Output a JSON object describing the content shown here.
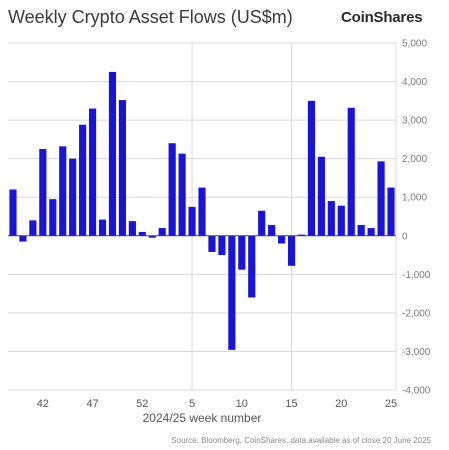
{
  "header": {
    "title": "Weekly Crypto Asset Flows (US$m)",
    "brand": "CoinShares"
  },
  "footer": {
    "source": "Source: Bloomberg, CoinShares, data available as of close 20 June 2025"
  },
  "colors": {
    "bar": "#1a14d6",
    "grid": "#d8d8d8",
    "zero_line": "#444444",
    "axis_text": "#7a7a7a"
  },
  "chart_data": {
    "type": "bar",
    "title": "Weekly Crypto Asset Flows (US$m)",
    "xlabel": "2024/25 week number",
    "ylabel": "",
    "ylim": [
      -4000,
      5000
    ],
    "yticks": [
      5000,
      4000,
      3000,
      2000,
      1000,
      0,
      -1000,
      -2000,
      -3000,
      -4000
    ],
    "ytick_labels": [
      "5,000",
      "4,000",
      "3,000",
      "2,000",
      "1,000",
      "0",
      "-1,000",
      "-2,000",
      "-3,000",
      "-4,000"
    ],
    "xtick_labels": [
      "42",
      "47",
      "52",
      "5",
      "10",
      "15",
      "20",
      "25"
    ],
    "xtick_positions": [
      3,
      8,
      13,
      18,
      23,
      28,
      33,
      38
    ],
    "vertical_gridlines_at": [
      18,
      28
    ],
    "grid": true,
    "y_axis_side": "right",
    "series": [
      {
        "values": [
          1200,
          -150,
          400,
          2250,
          950,
          2320,
          2000,
          2880,
          3300,
          420,
          4250,
          3520,
          380,
          100,
          -50,
          200,
          2400,
          2130,
          750,
          1250,
          -420,
          -500,
          -2960,
          -880,
          -1600,
          650,
          280,
          -200,
          -780,
          30,
          3500,
          2050,
          900,
          780,
          3320,
          280,
          200,
          1930,
          1250
        ]
      }
    ]
  }
}
